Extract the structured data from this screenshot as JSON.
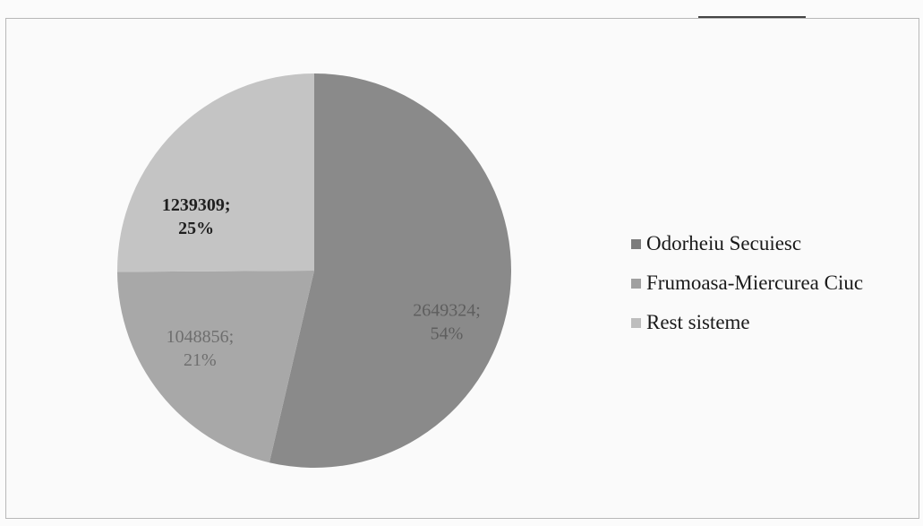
{
  "chart_data": {
    "type": "pie",
    "categories": [
      "Odorheiu Secuiesc",
      "Frumoasa-Miercurea Ciuc",
      "Rest sisteme"
    ],
    "values": [
      2649324,
      1048856,
      1239309
    ],
    "percent_labels": [
      "54%",
      "21%",
      "25%"
    ],
    "value_labels": [
      "2649324;",
      "1048856;",
      "1239309;"
    ],
    "colors": [
      "#8a8a8a",
      "#a8a8a8",
      "#c4c4c4"
    ],
    "label_colors": [
      "#5e5e5e",
      "#6e6e6e",
      "#1f1f1f"
    ],
    "legend_position": "right"
  }
}
